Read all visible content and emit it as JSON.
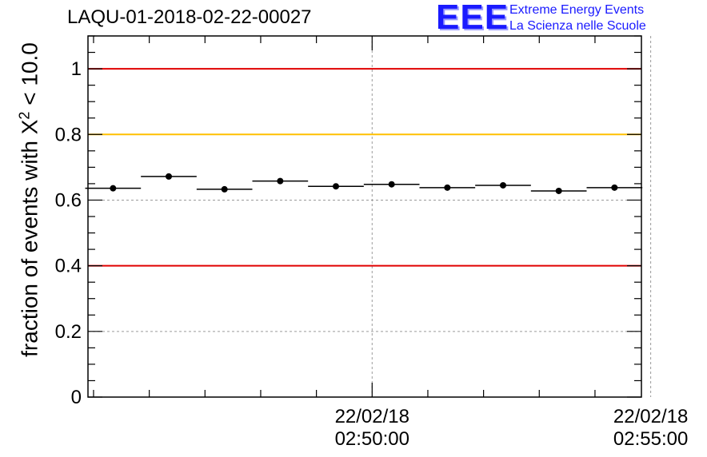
{
  "title": "LAQU-01-2018-02-22-00027",
  "logo": {
    "mark": "EEE",
    "line1": "Extreme Energy Events",
    "line2": "La Scienza nelle Scuole"
  },
  "colors": {
    "red_line": "#e00000",
    "yellow_line": "#ffc000",
    "logo_blue": "#1a1aff"
  },
  "chart_data": {
    "type": "scatter",
    "ylabel_prefix": "fraction of events with ",
    "ylabel_symbol": "X",
    "ylabel_sup": "2",
    "ylabel_suffix": " < 10.0",
    "ylim": [
      0,
      1.1
    ],
    "y_ticks": [
      "0",
      "0.2",
      "0.4",
      "0.6",
      "0.8",
      "1"
    ],
    "y_tick_values": [
      0,
      0.2,
      0.4,
      0.6,
      0.8,
      1.0
    ],
    "x_unit": "seconds since 02:45:00",
    "xlim": [
      -6,
      590
    ],
    "x_labels": [
      {
        "date": "22/02/18",
        "time": "02:50:00",
        "value": 300
      },
      {
        "date": "22/02/18",
        "time": "02:55:00",
        "value": 600
      }
    ],
    "reference_lines": [
      {
        "value": 1.0,
        "color": "#e00000"
      },
      {
        "value": 0.8,
        "color": "#ffc000"
      },
      {
        "value": 0.4,
        "color": "#e00000"
      }
    ],
    "points": [
      {
        "x": 21,
        "xerr": 30,
        "y": 0.636
      },
      {
        "x": 81,
        "xerr": 30,
        "y": 0.672
      },
      {
        "x": 141,
        "xerr": 30,
        "y": 0.633
      },
      {
        "x": 201,
        "xerr": 30,
        "y": 0.658
      },
      {
        "x": 261,
        "xerr": 30,
        "y": 0.642
      },
      {
        "x": 321,
        "xerr": 30,
        "y": 0.648
      },
      {
        "x": 381,
        "xerr": 30,
        "y": 0.638
      },
      {
        "x": 441,
        "xerr": 30,
        "y": 0.645
      },
      {
        "x": 501,
        "xerr": 30,
        "y": 0.628
      },
      {
        "x": 561,
        "xerr": 30,
        "y": 0.638
      }
    ]
  }
}
